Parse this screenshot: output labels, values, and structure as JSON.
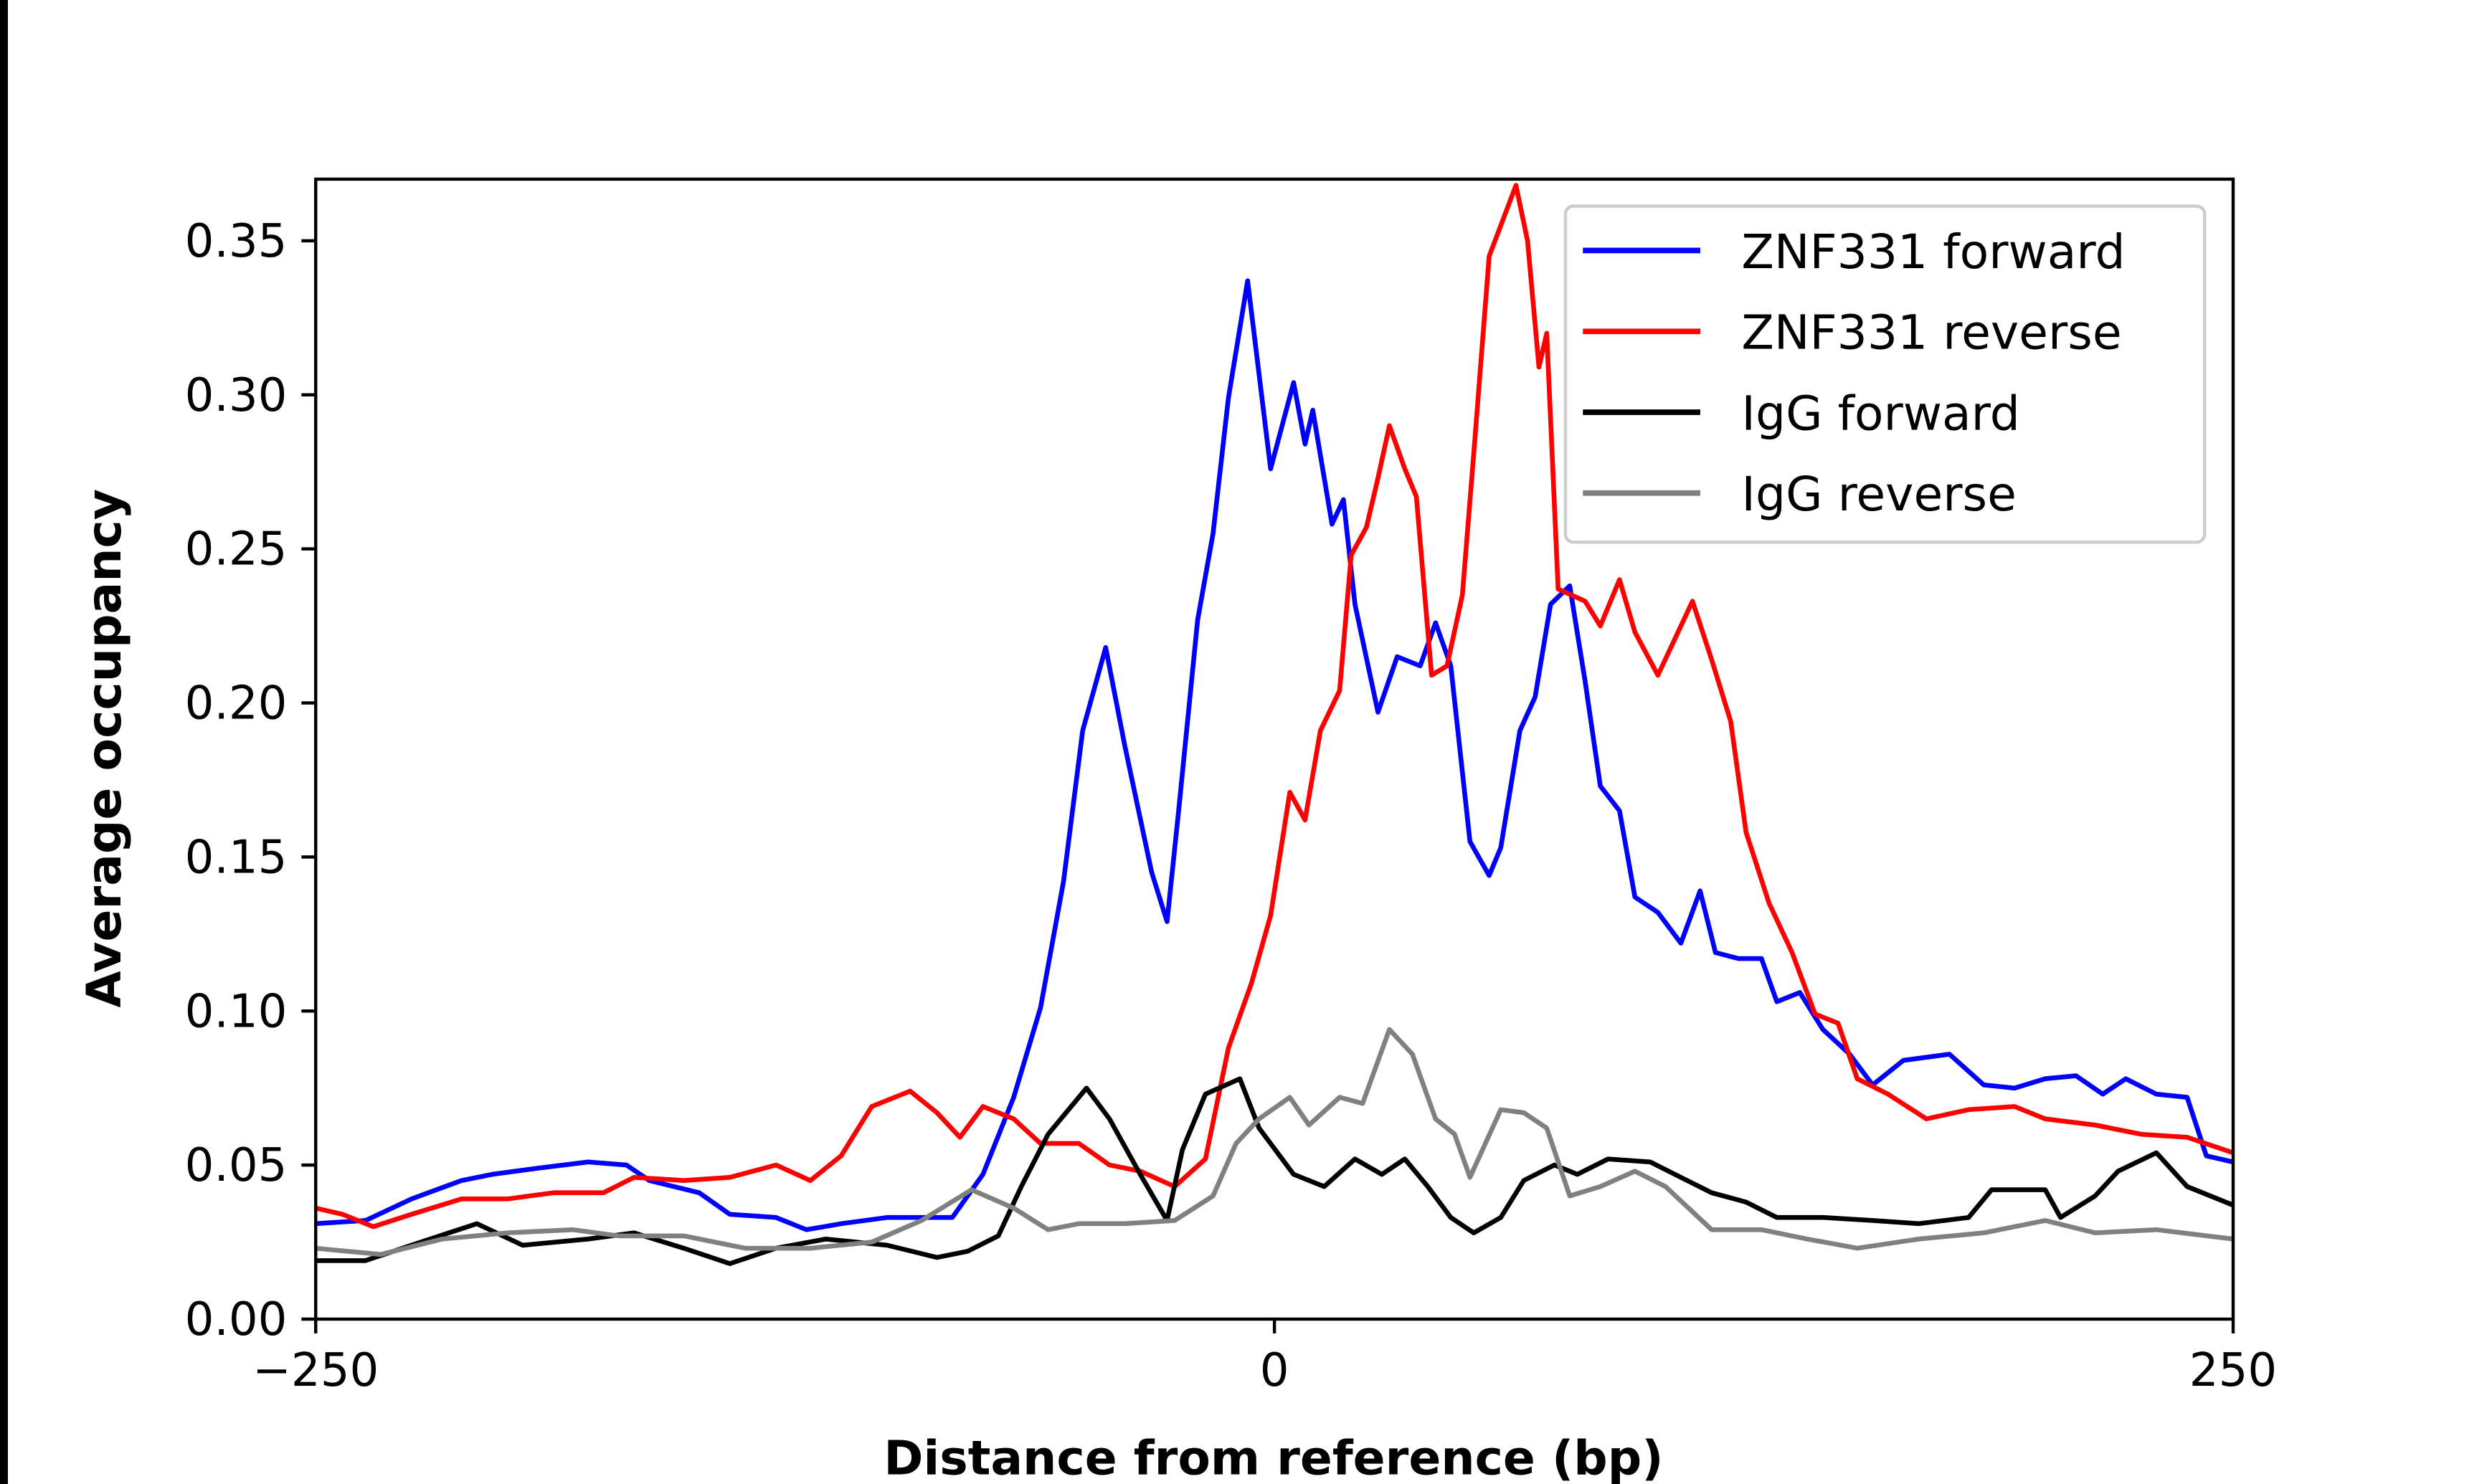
{
  "chart_data": {
    "type": "line",
    "title": "",
    "xlabel": "Distance from reference (bp)",
    "ylabel": "Average occupancy",
    "xlim": [
      -250,
      250
    ],
    "ylim": [
      0,
      0.37
    ],
    "xticks": [
      -250,
      0,
      250
    ],
    "xtick_labels": [
      "−250",
      "0",
      "250"
    ],
    "yticks": [
      0,
      0.05,
      0.1,
      0.15,
      0.2,
      0.25,
      0.3,
      0.35
    ],
    "ytick_labels": [
      "0.00",
      "0.05",
      "0.10",
      "0.15",
      "0.20",
      "0.25",
      "0.30",
      "0.35"
    ],
    "grid": false,
    "legend_position": "top-right",
    "series": [
      {
        "name": "ZNF331 forward",
        "color": "#0000ff",
        "x": [
          -250,
          -237,
          -225,
          -212,
          -204,
          -192,
          -179,
          -169,
          -163,
          -150,
          -142,
          -130,
          -122,
          -113,
          -101,
          -84,
          -76,
          -68,
          -61,
          -55,
          -50,
          -44,
          -39,
          -32,
          -28,
          -25,
          -20,
          -16,
          -12,
          -7,
          -1,
          5,
          8,
          10,
          15,
          18,
          21,
          27,
          32,
          38,
          42,
          46,
          51,
          56,
          59,
          64,
          68,
          72,
          77,
          81,
          85,
          90,
          94,
          100,
          106,
          111,
          115,
          121,
          127,
          131,
          137,
          143,
          150,
          156,
          164,
          176,
          185,
          193,
          201,
          209,
          216,
          222,
          230,
          238,
          243,
          250
        ],
        "y": [
          0.031,
          0.032,
          0.039,
          0.045,
          0.047,
          0.049,
          0.051,
          0.05,
          0.045,
          0.041,
          0.034,
          0.033,
          0.029,
          0.031,
          0.033,
          0.033,
          0.047,
          0.072,
          0.101,
          0.142,
          0.191,
          0.218,
          0.186,
          0.145,
          0.129,
          0.165,
          0.227,
          0.255,
          0.299,
          0.337,
          0.276,
          0.304,
          0.284,
          0.295,
          0.258,
          0.266,
          0.232,
          0.197,
          0.215,
          0.212,
          0.226,
          0.212,
          0.155,
          0.144,
          0.153,
          0.191,
          0.202,
          0.232,
          0.238,
          0.207,
          0.173,
          0.165,
          0.137,
          0.132,
          0.122,
          0.139,
          0.119,
          0.117,
          0.117,
          0.103,
          0.106,
          0.094,
          0.086,
          0.076,
          0.084,
          0.086,
          0.076,
          0.075,
          0.078,
          0.079,
          0.073,
          0.078,
          0.073,
          0.072,
          0.053,
          0.051
        ]
      },
      {
        "name": "ZNF331 reverse",
        "color": "#ff0000",
        "x": [
          -250,
          -243,
          -235,
          -225,
          -212,
          -200,
          -188,
          -175,
          -167,
          -154,
          -142,
          -130,
          -121,
          -113,
          -105,
          -95,
          -88,
          -82,
          -76,
          -68,
          -61,
          -51,
          -43,
          -35,
          -26,
          -18,
          -12,
          -6,
          -1,
          4,
          8,
          12,
          17,
          20,
          24,
          27,
          30,
          34,
          37,
          41,
          45,
          49,
          52,
          56,
          63,
          66,
          69,
          71,
          74,
          81,
          85,
          90,
          94,
          100,
          109,
          114,
          119,
          123,
          129,
          135,
          141,
          147,
          152,
          160,
          170,
          181,
          193,
          201,
          214,
          226,
          238,
          250
        ],
        "y": [
          0.036,
          0.034,
          0.03,
          0.034,
          0.039,
          0.039,
          0.041,
          0.041,
          0.046,
          0.045,
          0.046,
          0.05,
          0.045,
          0.053,
          0.069,
          0.074,
          0.067,
          0.059,
          0.069,
          0.065,
          0.057,
          0.057,
          0.05,
          0.048,
          0.043,
          0.052,
          0.088,
          0.109,
          0.131,
          0.171,
          0.162,
          0.191,
          0.204,
          0.248,
          0.257,
          0.273,
          0.29,
          0.276,
          0.267,
          0.209,
          0.212,
          0.235,
          0.281,
          0.345,
          0.368,
          0.35,
          0.309,
          0.32,
          0.237,
          0.233,
          0.225,
          0.24,
          0.223,
          0.209,
          0.233,
          0.214,
          0.194,
          0.158,
          0.135,
          0.119,
          0.099,
          0.096,
          0.078,
          0.073,
          0.065,
          0.068,
          0.069,
          0.065,
          0.063,
          0.06,
          0.059,
          0.054
        ]
      },
      {
        "name": "IgG forward",
        "color": "#000000",
        "x": [
          -250,
          -237,
          -225,
          -208,
          -196,
          -179,
          -167,
          -154,
          -142,
          -130,
          -117,
          -101,
          -88,
          -80,
          -72,
          -66,
          -59,
          -49,
          -43,
          -35,
          -28,
          -24,
          -18,
          -9,
          -4,
          5,
          13,
          21,
          28,
          34,
          40,
          46,
          52,
          59,
          65,
          73,
          79,
          87,
          98,
          106,
          114,
          123,
          131,
          143,
          156,
          168,
          181,
          187,
          201,
          205,
          214,
          220,
          230,
          238,
          250
        ],
        "y": [
          0.019,
          0.019,
          0.024,
          0.031,
          0.024,
          0.026,
          0.028,
          0.023,
          0.018,
          0.023,
          0.026,
          0.024,
          0.02,
          0.022,
          0.027,
          0.043,
          0.06,
          0.075,
          0.065,
          0.047,
          0.032,
          0.055,
          0.073,
          0.078,
          0.062,
          0.047,
          0.043,
          0.052,
          0.047,
          0.052,
          0.043,
          0.033,
          0.028,
          0.033,
          0.045,
          0.05,
          0.047,
          0.052,
          0.051,
          0.046,
          0.041,
          0.038,
          0.033,
          0.033,
          0.032,
          0.031,
          0.033,
          0.042,
          0.042,
          0.033,
          0.04,
          0.048,
          0.054,
          0.043,
          0.037
        ]
      },
      {
        "name": "IgG reverse",
        "color": "#808080",
        "x": [
          -250,
          -233,
          -217,
          -200,
          -183,
          -171,
          -154,
          -138,
          -121,
          -105,
          -92,
          -79,
          -68,
          -59,
          -51,
          -39,
          -26,
          -16,
          -10,
          -4,
          4,
          9,
          17,
          23,
          30,
          36,
          42,
          47,
          51,
          59,
          65,
          71,
          77,
          85,
          94,
          102,
          114,
          127,
          139,
          152,
          168,
          185,
          201,
          214,
          230,
          250
        ],
        "y": [
          0.023,
          0.021,
          0.026,
          0.028,
          0.029,
          0.027,
          0.027,
          0.023,
          0.023,
          0.025,
          0.032,
          0.042,
          0.036,
          0.029,
          0.031,
          0.031,
          0.032,
          0.04,
          0.057,
          0.065,
          0.072,
          0.063,
          0.072,
          0.07,
          0.094,
          0.086,
          0.065,
          0.06,
          0.046,
          0.068,
          0.067,
          0.062,
          0.04,
          0.043,
          0.048,
          0.043,
          0.029,
          0.029,
          0.026,
          0.023,
          0.026,
          0.028,
          0.032,
          0.028,
          0.029,
          0.026
        ]
      }
    ]
  }
}
